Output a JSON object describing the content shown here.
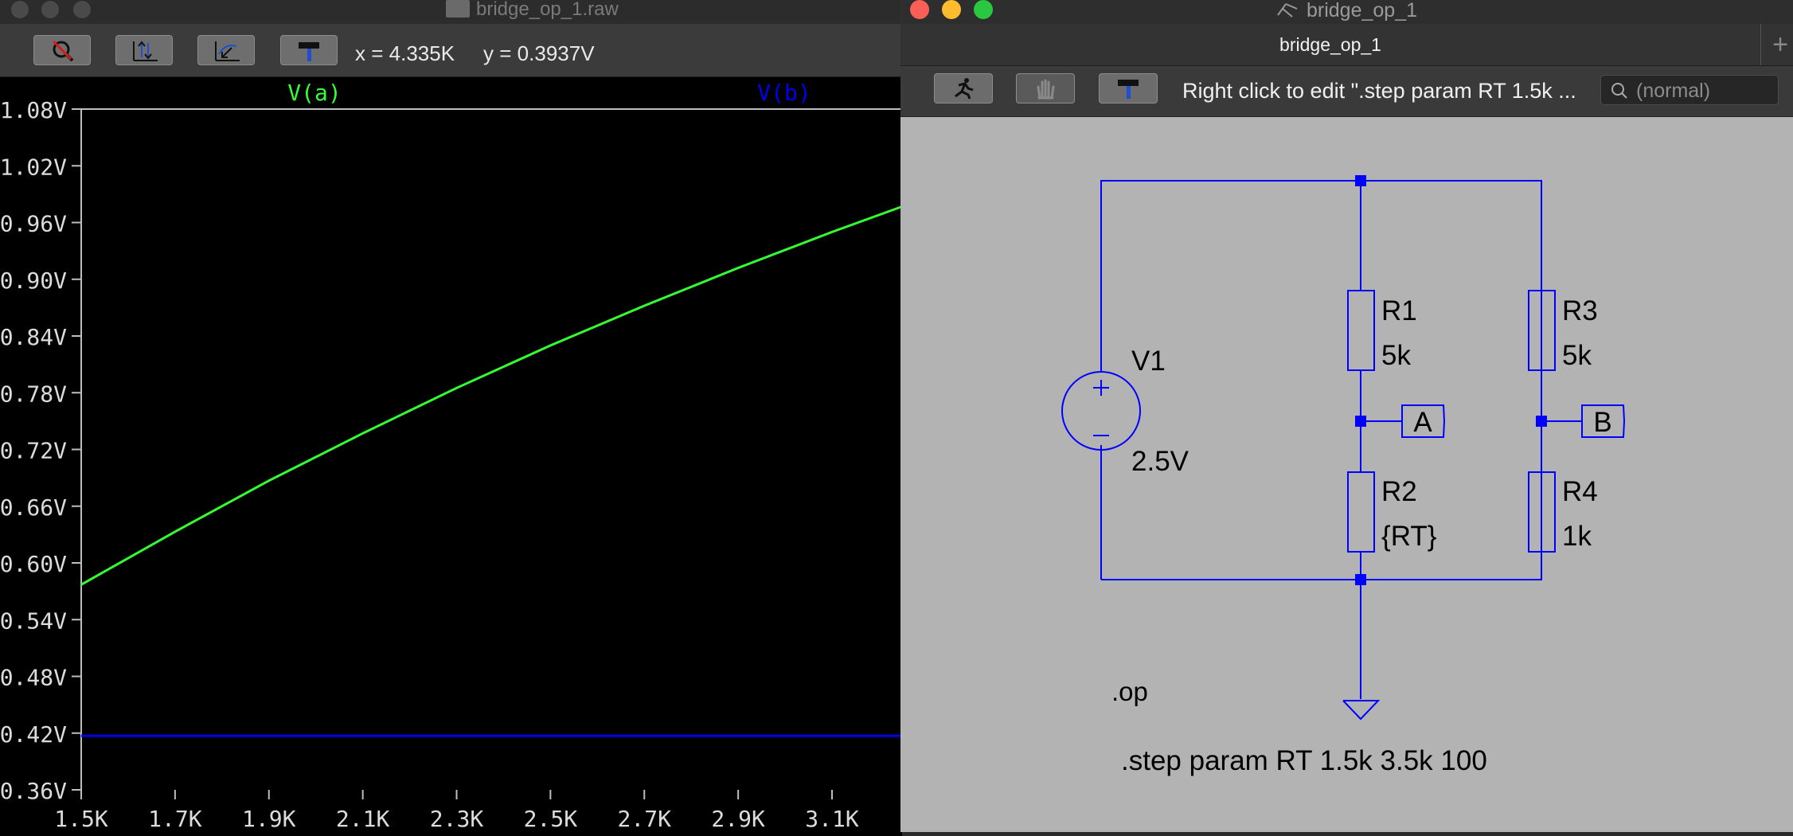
{
  "waveform_window": {
    "title": "bridge_op_1.raw",
    "cursor": {
      "x": "x = 4.335K",
      "y": "y = 0.3937V"
    },
    "toolbar": {
      "icons": [
        "zoom-cancel-icon",
        "autorange-icon",
        "zoom-back-icon",
        "hammer-icon"
      ]
    }
  },
  "chart_data": {
    "type": "line",
    "x": [
      1500,
      1700,
      1900,
      2100,
      2300,
      2500,
      2700,
      2900,
      3100,
      3300
    ],
    "xlim": [
      1500,
      3300
    ],
    "ylim": [
      0.36,
      1.08
    ],
    "xticks": [
      "1.5K",
      "1.7K",
      "1.9K",
      "2.1K",
      "2.3K",
      "2.5K",
      "2.7K",
      "2.9K",
      "3.1K"
    ],
    "yticks": [
      "1.08V",
      "1.02V",
      "0.96V",
      "0.90V",
      "0.84V",
      "0.78V",
      "0.72V",
      "0.66V",
      "0.60V",
      "0.54V",
      "0.48V",
      "0.42V",
      "0.36V"
    ],
    "grid": false,
    "legend": "top",
    "series": [
      {
        "name": "V(a)",
        "color": "#33ff33",
        "values": [
          0.577,
          0.633,
          0.687,
          0.737,
          0.785,
          0.83,
          0.872,
          0.912,
          0.95,
          0.986
        ]
      },
      {
        "name": "V(b)",
        "color": "#0000ee",
        "values": [
          0.417,
          0.417,
          0.417,
          0.417,
          0.417,
          0.417,
          0.417,
          0.417,
          0.417,
          0.417
        ]
      }
    ]
  },
  "schematic_window": {
    "title": "bridge_op_1",
    "tab_label": "bridge_op_1",
    "add_tab": "+",
    "status_hint": "Right click to edit \".step param RT 1.5k ...",
    "search_placeholder": "(normal)",
    "toolbar": {
      "icons": [
        "run-icon",
        "pan-hand-icon",
        "hammer-icon"
      ]
    },
    "wire_color": "#0000ff",
    "components": {
      "v1": {
        "name": "V1",
        "value": "2.5V"
      },
      "r1": {
        "name": "R1",
        "value": "5k"
      },
      "r2": {
        "name": "R2",
        "value": "{RT}"
      },
      "r3": {
        "name": "R3",
        "value": "5k"
      },
      "r4": {
        "name": "R4",
        "value": "1k"
      }
    },
    "net_labels": {
      "a": "A",
      "b": "B"
    },
    "directives": {
      "op": ".op",
      "step": ".step param RT 1.5k 3.5k 100"
    }
  }
}
